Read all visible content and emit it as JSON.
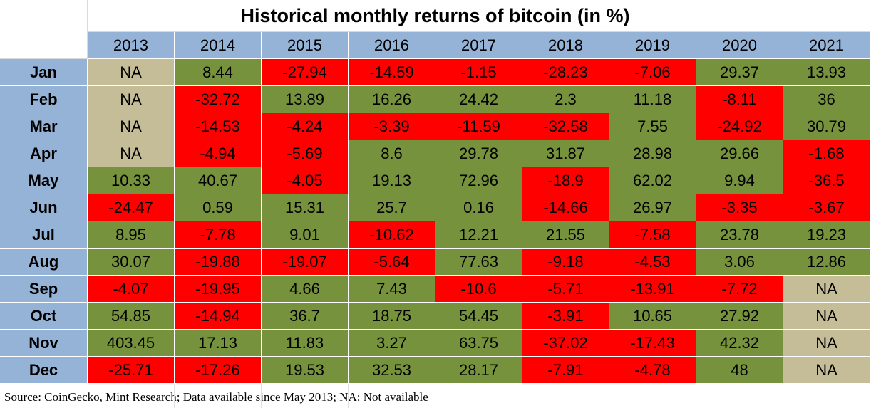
{
  "header": {
    "title": "Historical monthly returns of bitcoin (in %)"
  },
  "table": {
    "columns": [
      "2013",
      "2014",
      "2015",
      "2016",
      "2017",
      "2018",
      "2019",
      "2020",
      "2021"
    ],
    "rows": [
      {
        "label": "Jan",
        "cells": [
          "NA",
          "8.44",
          "-27.94",
          "-14.59",
          "-1.15",
          "-28.23",
          "-7.06",
          "29.37",
          "13.93"
        ]
      },
      {
        "label": "Feb",
        "cells": [
          "NA",
          "-32.72",
          "13.89",
          "16.26",
          "24.42",
          "2.3",
          "11.18",
          "-8.11",
          "36"
        ]
      },
      {
        "label": "Mar",
        "cells": [
          "NA",
          "-14.53",
          "-4.24",
          "-3.39",
          "-11.59",
          "-32.58",
          "7.55",
          "-24.92",
          "30.79"
        ]
      },
      {
        "label": "Apr",
        "cells": [
          "NA",
          "-4.94",
          "-5.69",
          "8.6",
          "29.78",
          "31.87",
          "28.98",
          "29.66",
          "-1.68"
        ]
      },
      {
        "label": "May",
        "cells": [
          "10.33",
          "40.67",
          "-4.05",
          "19.13",
          "72.96",
          "-18.9",
          "62.02",
          "9.94",
          "-36.5"
        ]
      },
      {
        "label": "Jun",
        "cells": [
          "-24.47",
          "0.59",
          "15.31",
          "25.7",
          "0.16",
          "-14.66",
          "26.97",
          "-3.35",
          "-3.67"
        ]
      },
      {
        "label": "Jul",
        "cells": [
          "8.95",
          "-7.78",
          "9.01",
          "-10.62",
          "12.21",
          "21.55",
          "-7.58",
          "23.78",
          "19.23"
        ]
      },
      {
        "label": "Aug",
        "cells": [
          "30.07",
          "-19.88",
          "-19.07",
          "-5.64",
          "77.63",
          "-9.18",
          "-4.53",
          "3.06",
          "12.86"
        ]
      },
      {
        "label": "Sep",
        "cells": [
          "-4.07",
          "-19.95",
          "4.66",
          "7.43",
          "-10.6",
          "-5.71",
          "-13.91",
          "-7.72",
          "NA"
        ]
      },
      {
        "label": "Oct",
        "cells": [
          "54.85",
          "-14.94",
          "36.7",
          "18.75",
          "54.45",
          "-3.91",
          "10.65",
          "27.92",
          "NA"
        ]
      },
      {
        "label": "Nov",
        "cells": [
          "403.45",
          "17.13",
          "11.83",
          "3.27",
          "63.75",
          "-37.02",
          "-17.43",
          "42.32",
          "NA"
        ]
      },
      {
        "label": "Dec",
        "cells": [
          "-25.71",
          "-17.26",
          "19.53",
          "32.53",
          "28.17",
          "-7.91",
          "-4.78",
          "48",
          "NA"
        ]
      }
    ],
    "colors": {
      "positive": "#76923c",
      "negative": "#ff0000",
      "na": "#c4bd97"
    }
  },
  "footer": {
    "source": "Source: CoinGecko, Mint Research; Data available since May 2013; NA: Not available"
  }
}
